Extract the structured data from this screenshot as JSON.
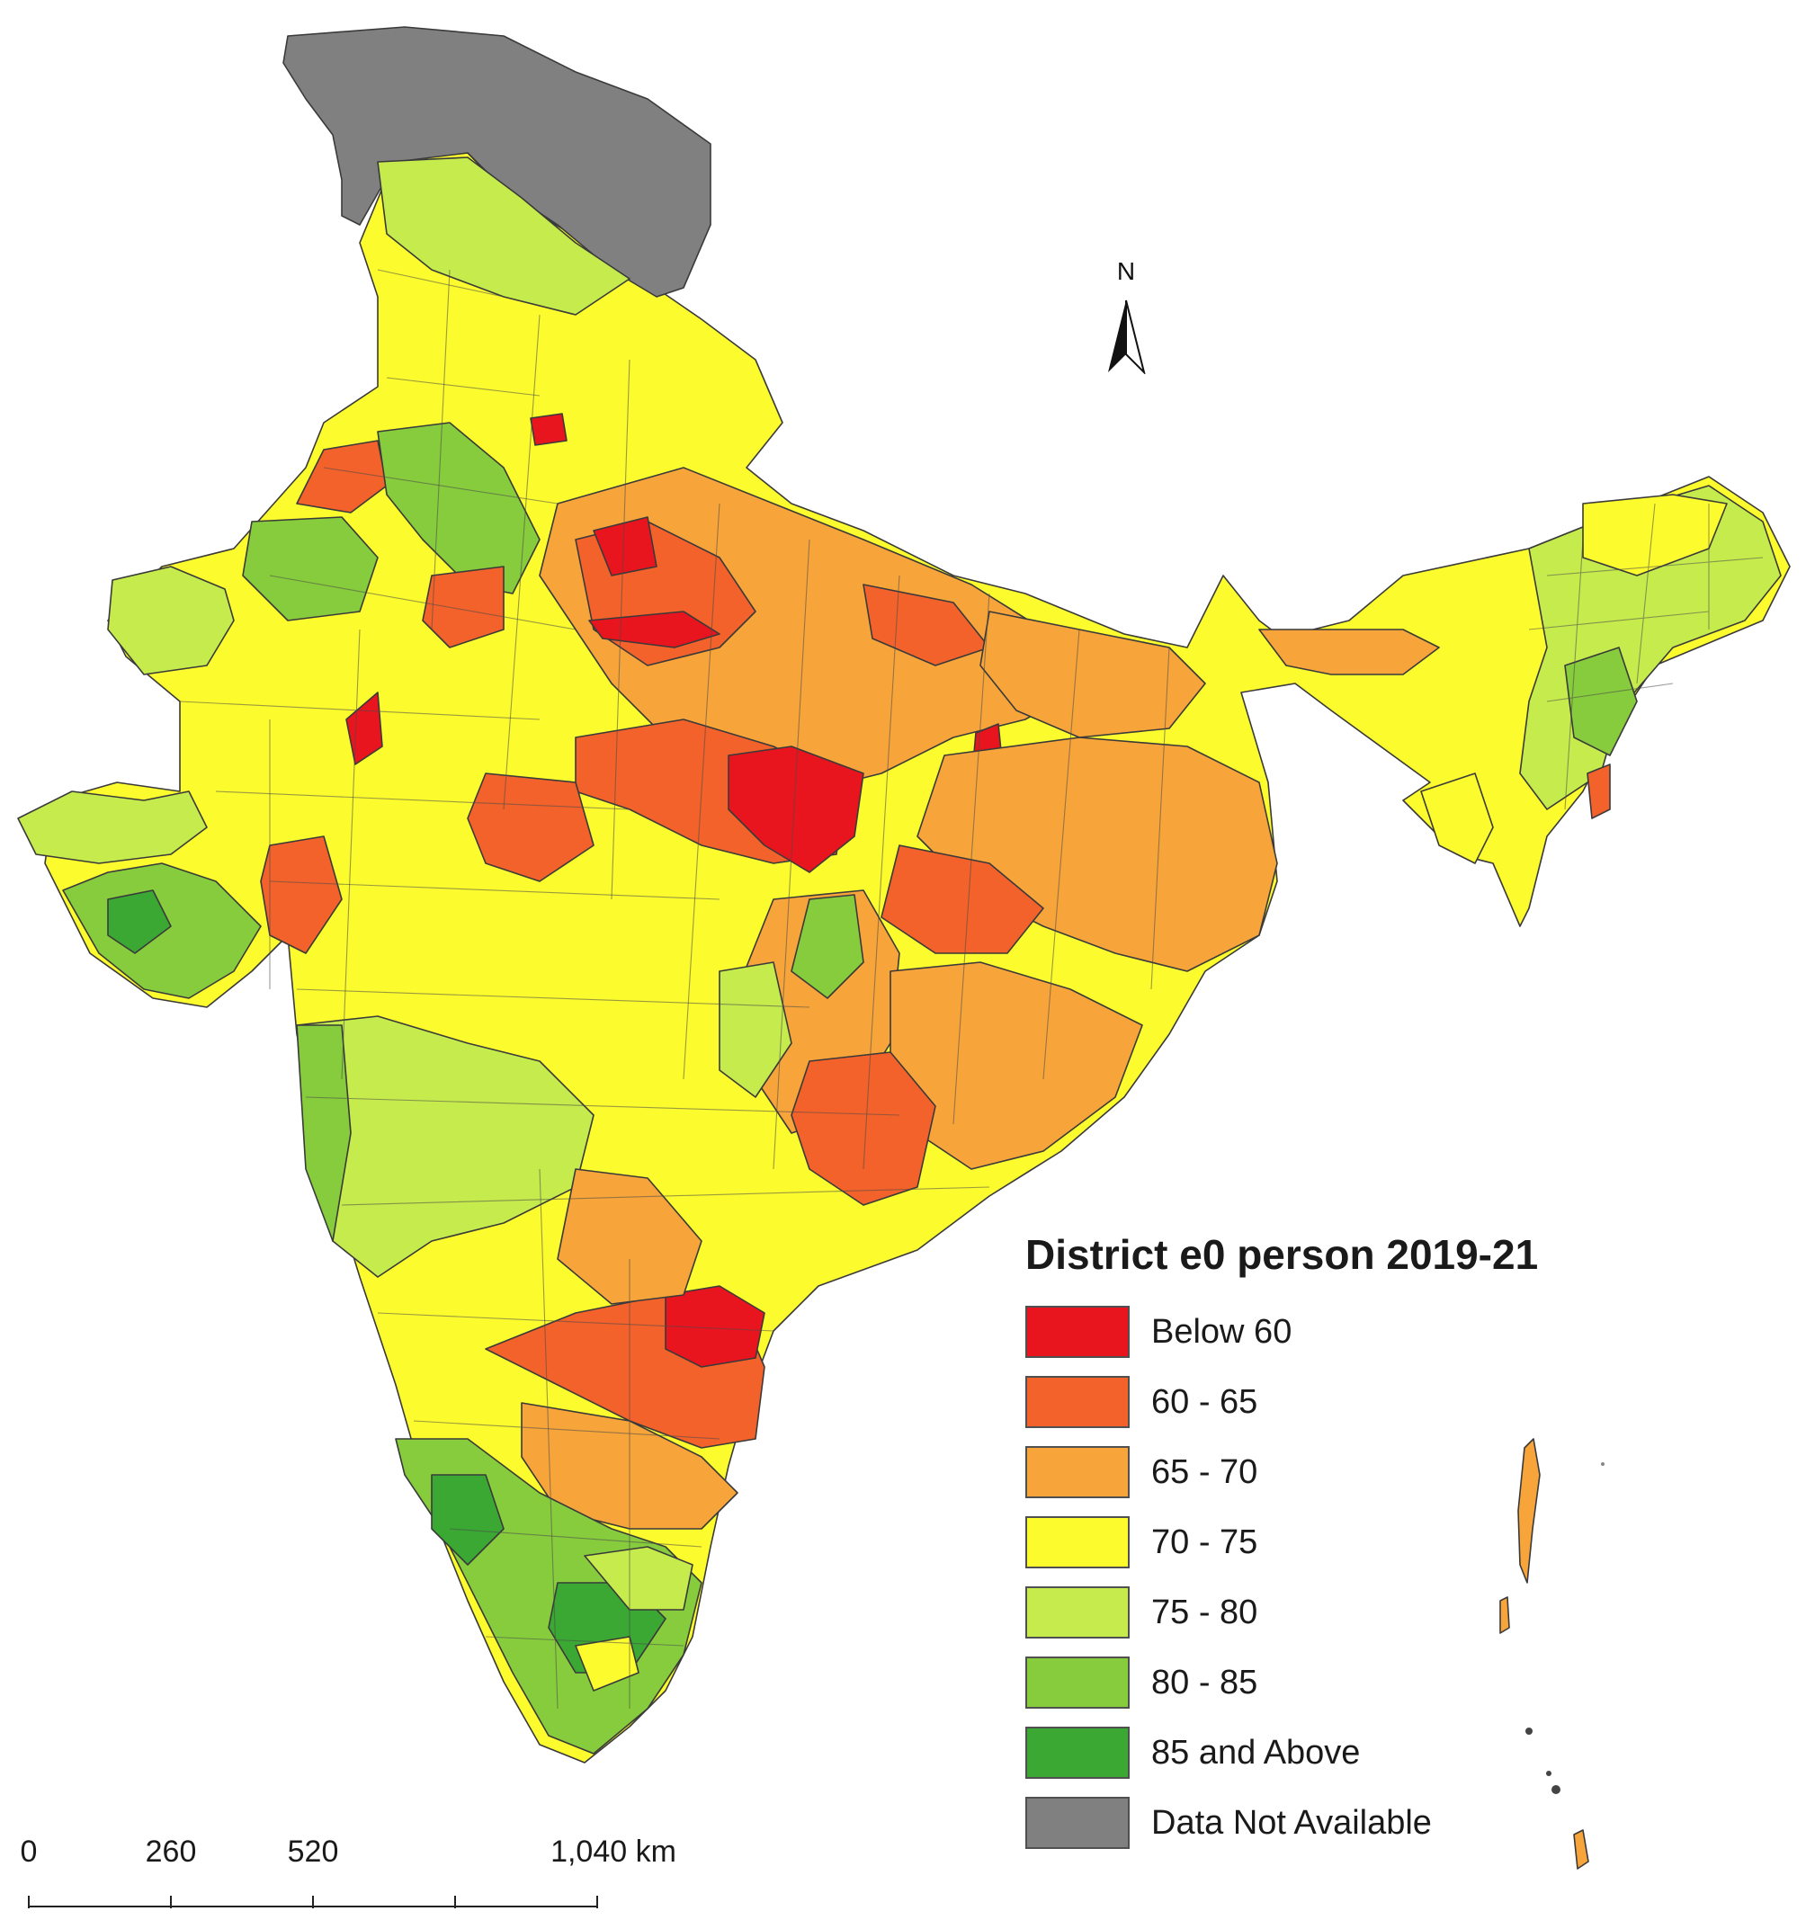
{
  "legend": {
    "title": "District e0 person 2019-21",
    "items": [
      {
        "label": "Below  60",
        "color": "#e8141e"
      },
      {
        "label": "60 - 65",
        "color": "#f2622a"
      },
      {
        "label": "65 - 70",
        "color": "#f7a53a"
      },
      {
        "label": "70 - 75",
        "color": "#fbfb2e"
      },
      {
        "label": "75 - 80",
        "color": "#c5eb4c"
      },
      {
        "label": "80 - 85",
        "color": "#86cc3c"
      },
      {
        "label": "85 and Above",
        "color": "#3aa832"
      },
      {
        "label": "Data Not Available",
        "color": "#808080"
      }
    ]
  },
  "north_arrow": {
    "letter": "N",
    "icon": "north-arrow-icon"
  },
  "scale_bar": {
    "ticks": [
      "0",
      "260",
      "520",
      "1,040 km"
    ],
    "tick_values_km": [
      0,
      260,
      520,
      1040
    ],
    "max_km": 1040
  }
}
